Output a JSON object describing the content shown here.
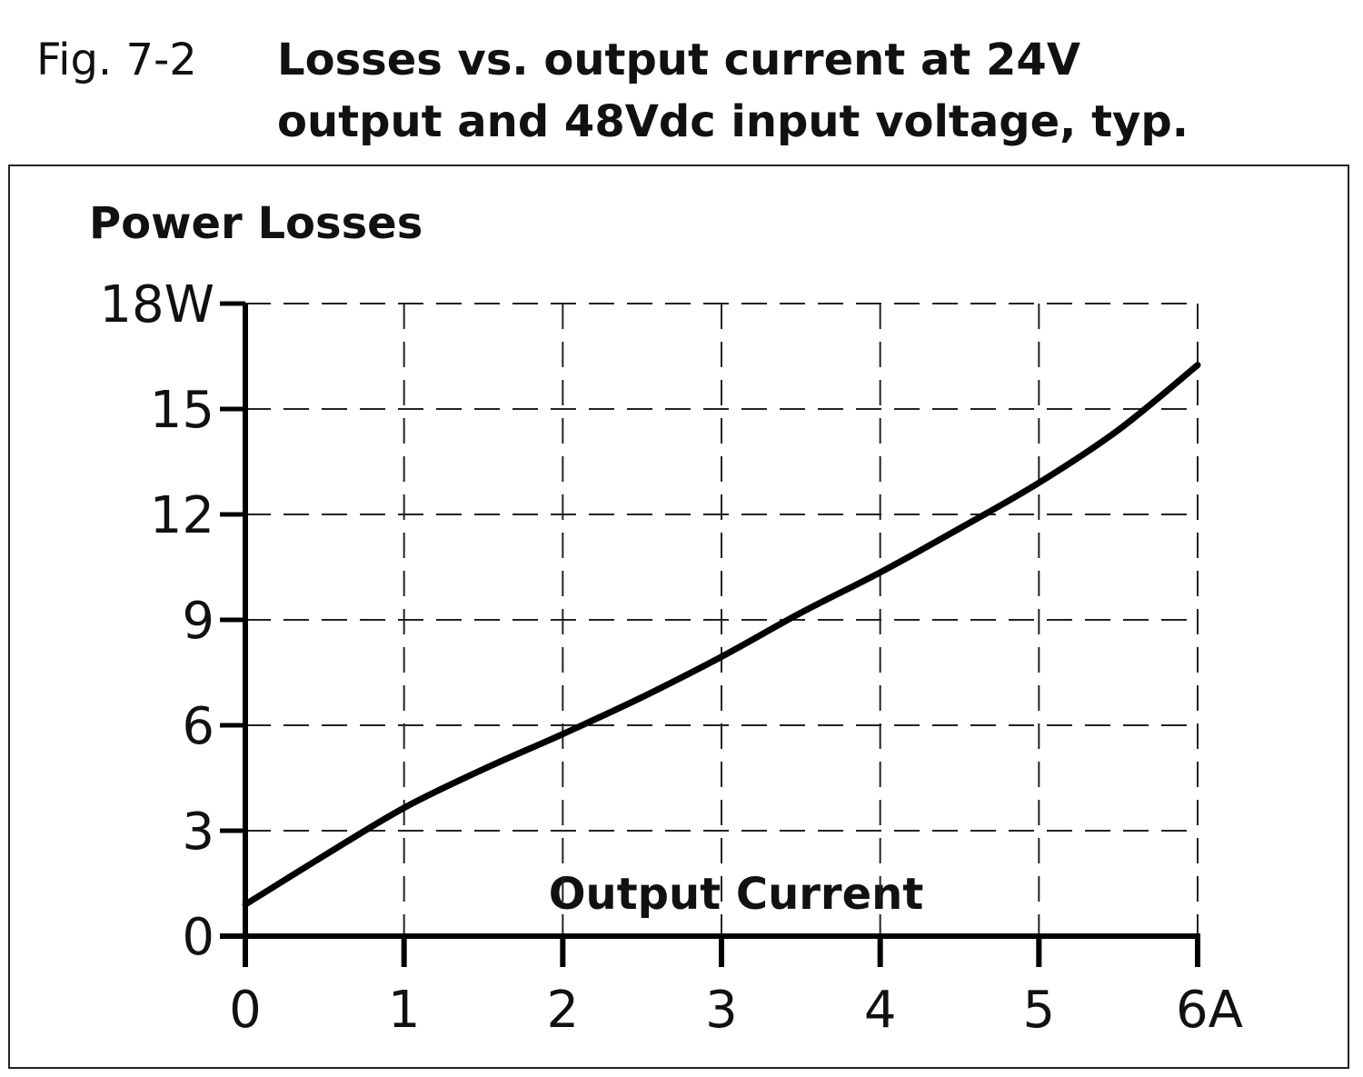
{
  "chart_data": {
    "type": "line",
    "figure_label": "Fig. 7-2",
    "title": [
      "Losses vs. output current at 24V",
      "output and 48Vdc input voltage, typ."
    ],
    "ylabel": "Power Losses",
    "xlabel": "Output Current",
    "x": [
      0,
      0.5,
      1,
      1.5,
      2,
      2.5,
      3,
      3.5,
      4,
      4.5,
      5,
      5.5,
      6
    ],
    "series": [
      {
        "color": "#000000",
        "values": [
          0.9,
          2.3,
          3.65,
          4.75,
          5.75,
          6.8,
          7.95,
          9.2,
          10.35,
          11.6,
          12.9,
          14.4,
          16.25
        ]
      }
    ],
    "xlim": [
      0,
      6
    ],
    "ylim": [
      0,
      18
    ],
    "xticks": [
      0,
      1,
      2,
      3,
      4,
      5,
      {
        "value": 6,
        "label": "6A"
      }
    ],
    "yticks": [
      0,
      3,
      6,
      9,
      12,
      15,
      {
        "value": 18,
        "label": "18W"
      }
    ],
    "grid": true
  }
}
